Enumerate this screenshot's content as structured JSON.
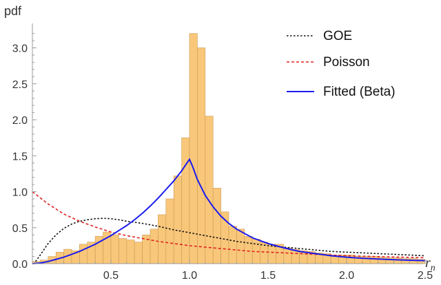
{
  "chart_data": {
    "type": "bar",
    "title": "",
    "xlabel": "r",
    "xlabel_subscript": "n",
    "ylabel": "pdf",
    "xlim": [
      0,
      2.5
    ],
    "ylim": [
      0,
      3.3
    ],
    "x_ticks": [
      0.5,
      1.0,
      1.5,
      2.0,
      2.5
    ],
    "x_tick_labels": [
      "0.5",
      "1.0",
      "1.5",
      "2.0",
      "2.5"
    ],
    "y_ticks": [
      0.0,
      0.5,
      1.0,
      1.5,
      2.0,
      2.5,
      3.0
    ],
    "y_tick_labels": [
      "0.0",
      "0.5",
      "1.0",
      "1.5",
      "2.0",
      "2.5",
      "3.0"
    ],
    "grid": false,
    "legend_position": "top-right",
    "histogram": {
      "bin_width": 0.05,
      "bin_starts": [
        0.0,
        0.05,
        0.1,
        0.15,
        0.2,
        0.25,
        0.3,
        0.35,
        0.4,
        0.45,
        0.5,
        0.55,
        0.6,
        0.65,
        0.7,
        0.75,
        0.8,
        0.85,
        0.9,
        0.95,
        1.0,
        1.05,
        1.1,
        1.15,
        1.2,
        1.25,
        1.3,
        1.35,
        1.4,
        1.45,
        1.5,
        1.55,
        1.6,
        1.65,
        1.7,
        1.75,
        1.8,
        1.85,
        1.9,
        1.95,
        2.0,
        2.05,
        2.1,
        2.15,
        2.2,
        2.25,
        2.3,
        2.35,
        2.4,
        2.45
      ],
      "values": [
        0.03,
        0.05,
        0.1,
        0.16,
        0.2,
        0.18,
        0.27,
        0.3,
        0.38,
        0.44,
        0.4,
        0.35,
        0.33,
        0.3,
        0.4,
        0.48,
        0.68,
        0.9,
        1.22,
        1.75,
        3.2,
        3.0,
        2.05,
        1.05,
        0.72,
        0.52,
        0.48,
        0.38,
        0.34,
        0.3,
        0.27,
        0.27,
        0.22,
        0.2,
        0.18,
        0.17,
        0.15,
        0.14,
        0.12,
        0.12,
        0.12,
        0.1,
        0.1,
        0.1,
        0.09,
        0.08,
        0.08,
        0.07,
        0.07,
        0.06
      ],
      "fill_color": "#f9c77a",
      "edge_color": "#c99a55"
    },
    "series": [
      {
        "name": "GOE",
        "color": "#111111",
        "style": "dotted",
        "x": [
          0.02,
          0.05,
          0.1,
          0.15,
          0.2,
          0.25,
          0.3,
          0.35,
          0.4,
          0.45,
          0.5,
          0.55,
          0.6,
          0.7,
          0.8,
          0.9,
          1.0,
          1.1,
          1.2,
          1.3,
          1.4,
          1.5,
          1.6,
          1.7,
          1.8,
          1.9,
          2.0,
          2.1,
          2.2,
          2.3,
          2.4,
          2.5
        ],
        "y": [
          0.03,
          0.12,
          0.28,
          0.4,
          0.49,
          0.55,
          0.59,
          0.61,
          0.625,
          0.63,
          0.625,
          0.61,
          0.59,
          0.56,
          0.52,
          0.47,
          0.43,
          0.39,
          0.35,
          0.31,
          0.28,
          0.25,
          0.23,
          0.21,
          0.19,
          0.17,
          0.16,
          0.15,
          0.14,
          0.13,
          0.12,
          0.11
        ]
      },
      {
        "name": "Poisson",
        "color": "#e02020",
        "style": "dashed",
        "x": [
          0.0,
          0.1,
          0.2,
          0.3,
          0.4,
          0.5,
          0.6,
          0.7,
          0.8,
          0.9,
          1.0,
          1.2,
          1.4,
          1.6,
          1.8,
          2.0,
          2.2,
          2.4,
          2.5
        ],
        "y": [
          1.0,
          0.83,
          0.69,
          0.59,
          0.51,
          0.44,
          0.39,
          0.35,
          0.31,
          0.28,
          0.25,
          0.21,
          0.17,
          0.15,
          0.13,
          0.11,
          0.098,
          0.087,
          0.082
        ]
      },
      {
        "name": "Fitted (Beta)",
        "color": "#1a1aee",
        "style": "solid",
        "x": [
          0.0,
          0.05,
          0.1,
          0.15,
          0.2,
          0.25,
          0.3,
          0.35,
          0.4,
          0.45,
          0.5,
          0.55,
          0.6,
          0.65,
          0.7,
          0.75,
          0.8,
          0.85,
          0.9,
          0.95,
          1.0,
          1.02,
          1.05,
          1.1,
          1.15,
          1.2,
          1.25,
          1.3,
          1.4,
          1.5,
          1.6,
          1.7,
          1.8,
          1.9,
          2.0,
          2.1,
          2.2,
          2.3,
          2.4,
          2.5
        ],
        "y": [
          0.0,
          0.01,
          0.03,
          0.06,
          0.09,
          0.13,
          0.17,
          0.22,
          0.27,
          0.33,
          0.39,
          0.46,
          0.53,
          0.61,
          0.7,
          0.8,
          0.91,
          1.03,
          1.15,
          1.29,
          1.45,
          1.35,
          1.17,
          0.95,
          0.79,
          0.66,
          0.56,
          0.48,
          0.36,
          0.28,
          0.22,
          0.17,
          0.14,
          0.11,
          0.09,
          0.075,
          0.065,
          0.055,
          0.048,
          0.042
        ]
      }
    ]
  }
}
